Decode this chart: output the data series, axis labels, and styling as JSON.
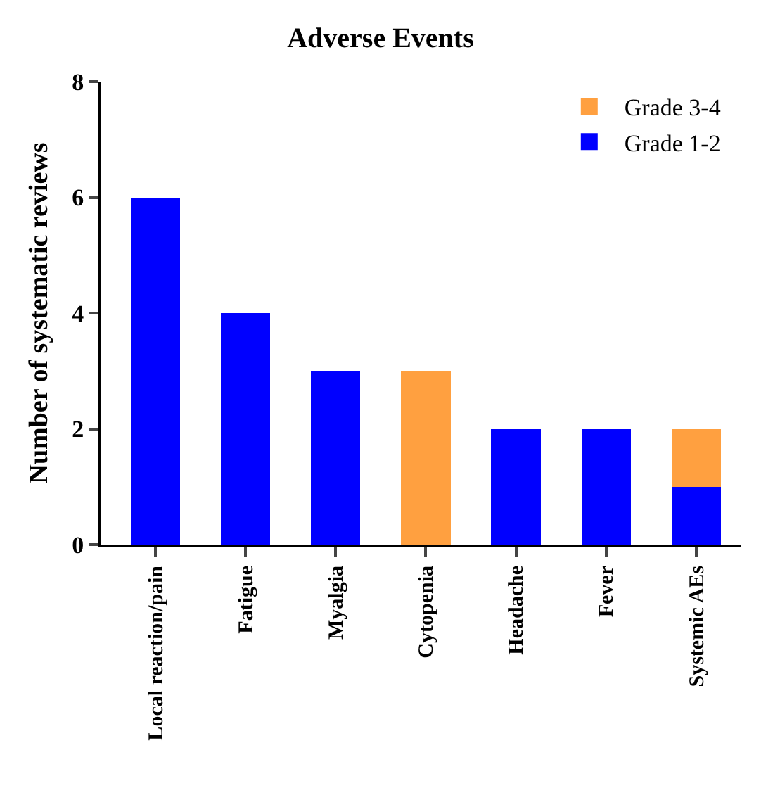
{
  "chart_data": {
    "type": "bar",
    "title": "Adverse Events",
    "ylabel": "Number of systematic reviews",
    "categories": [
      "Local reaction/pain",
      "Fatigue",
      "Myalgia",
      "Cytopenia",
      "Headache",
      "Fever",
      "Systemic AEs"
    ],
    "series": [
      {
        "name": "Grade 1-2",
        "color": "#0000ff",
        "values": [
          6,
          4,
          3,
          0,
          2,
          2,
          1
        ]
      },
      {
        "name": "Grade 3-4",
        "color": "#ffa040",
        "values": [
          0,
          0,
          0,
          3,
          0,
          0,
          1
        ]
      }
    ],
    "stacked": true,
    "ylim": [
      0,
      8
    ],
    "yticks": [
      0,
      2,
      4,
      6,
      8
    ],
    "grid": false,
    "legend": "top right"
  }
}
